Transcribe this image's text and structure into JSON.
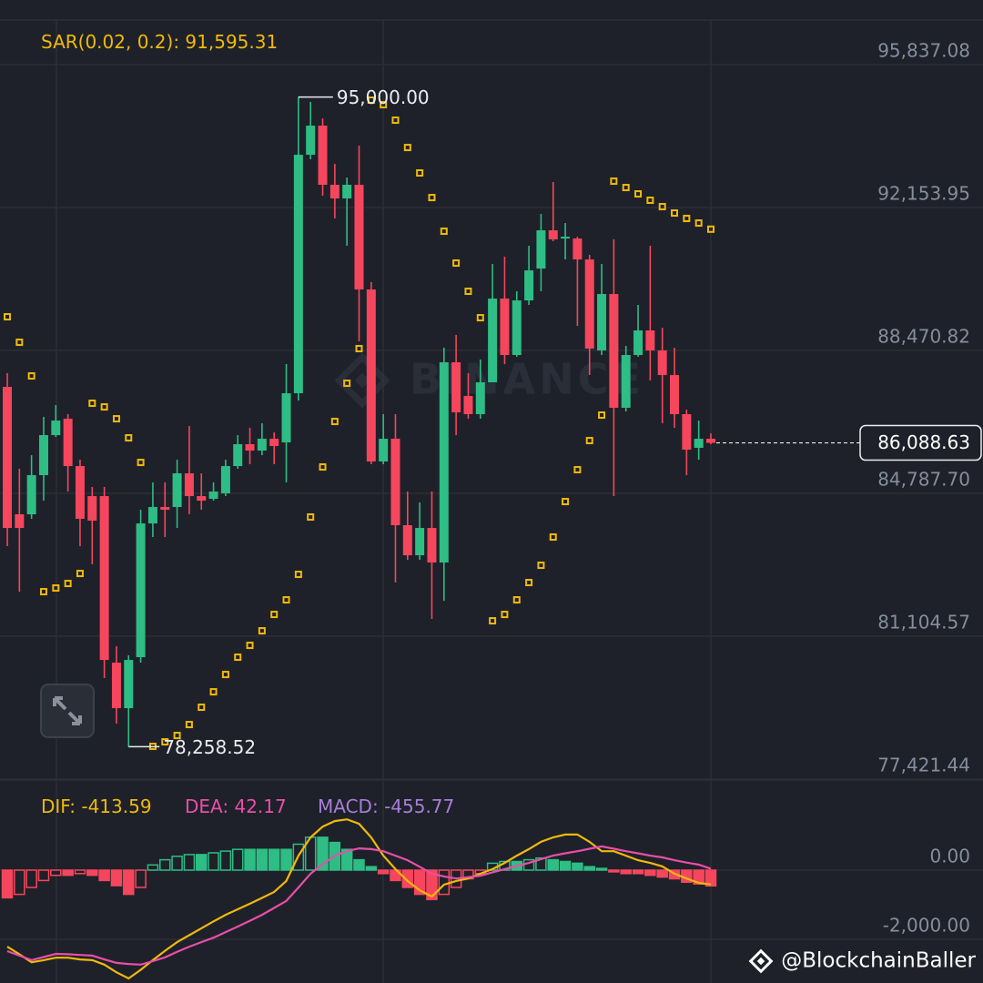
{
  "chart_data": [
    {
      "type": "candlestick",
      "up_color": "#2ebd85",
      "down_color": "#f6465d",
      "ylim": [
        77397.98,
        96986.59
      ],
      "yticks": [
        {
          "value": 95837.08,
          "label": "95,837.08"
        },
        {
          "value": 92153.95,
          "label": "92,153.95"
        },
        {
          "value": 88470.82,
          "label": "88,470.82"
        },
        {
          "value": 84787.7,
          "label": "84,787.70"
        },
        {
          "value": 81104.57,
          "label": "81,104.57"
        },
        {
          "value": 77421.44,
          "label": "77,421.44"
        }
      ],
      "grid": true,
      "open": [
        87531,
        84247,
        84247,
        85256,
        86288,
        86710,
        85490,
        84716,
        84716,
        80423,
        79250,
        80564,
        84012,
        84435,
        84435,
        85303,
        84716,
        84646,
        84787,
        85490,
        86054,
        85889,
        86194,
        86100,
        87367,
        93514,
        94265,
        92740,
        92388,
        92740,
        90042,
        85608,
        86194,
        83966,
        83191,
        83895,
        83004,
        88165,
        87297,
        86828,
        87649,
        89807,
        88353,
        89760,
        90581,
        91567,
        91355,
        91355,
        90816,
        88470,
        89924,
        86992,
        88353,
        88986,
        88470,
        87836,
        86828,
        85960,
        86194
      ],
      "high": [
        87883,
        85420,
        85772,
        86757,
        87062,
        86828,
        85655,
        84951,
        84951,
        80845,
        80611,
        84364,
        85068,
        85068,
        85655,
        86523,
        85303,
        85068,
        85655,
        86288,
        86476,
        86593,
        86358,
        88118,
        95000,
        94874,
        94452,
        93279,
        92927,
        93748,
        90229,
        86828,
        86828,
        84834,
        84552,
        84834,
        88540,
        88869,
        87883,
        88235,
        90699,
        90886,
        89995,
        91168,
        91989,
        92810,
        91754,
        91402,
        90933,
        90699,
        91332,
        88587,
        89643,
        91168,
        89056,
        88540,
        86945,
        86663,
        86335
      ],
      "low": [
        83426,
        82253,
        84130,
        84599,
        86241,
        84834,
        83426,
        82957,
        80024,
        78851,
        78258.52,
        80423,
        83661,
        83661,
        83895,
        84247,
        84364,
        84599,
        84716,
        85420,
        85537,
        85772,
        85537,
        85068,
        87180,
        93396,
        92458,
        91872,
        91168,
        88704,
        85537,
        85537,
        82488,
        83074,
        83074,
        81549,
        82018,
        86288,
        86710,
        86710,
        87649,
        88118,
        88306,
        89643,
        89995,
        91285,
        90816,
        89103,
        87836,
        88353,
        84716,
        86898,
        88306,
        87696,
        86593,
        86476,
        85256,
        85655,
        86054
      ],
      "close": [
        83895,
        83895,
        85256,
        86288,
        86663,
        85490,
        84130,
        84083,
        80493,
        79250,
        80493,
        84012,
        84435,
        84364,
        85303,
        84716,
        84599,
        84834,
        85490,
        86054,
        85889,
        86194,
        86007,
        87367,
        93514,
        94265,
        92740,
        92388,
        92740,
        90042,
        85608,
        86194,
        83966,
        83191,
        83895,
        83004,
        88165,
        86875,
        86828,
        87649,
        89807,
        88353,
        89760,
        90534,
        91567,
        91332,
        91402,
        90816,
        88517,
        89924,
        86992,
        88353,
        88986,
        88470,
        87836,
        86828,
        85913,
        86194,
        86088.63
      ],
      "high_label": "95,000.00",
      "low_label": "78,258.52",
      "last_label": "86,088.63",
      "sar": {
        "name": "SAR(0.02, 0.2)",
        "color": "#f0b90b",
        "value_label": "91,595.31",
        "values": [
          89338,
          88681,
          87813,
          82253,
          82347,
          82464,
          82722,
          87109,
          87015,
          86710,
          86218,
          85584,
          78265,
          78382,
          78546,
          78828,
          79274,
          79672,
          80118,
          80564,
          80869,
          81244,
          81666,
          82042,
          82699,
          84177,
          85467,
          86640,
          87625,
          88517,
          94921,
          94804,
          94405,
          93701,
          93045,
          92411,
          91543,
          90722,
          89995,
          89314,
          81502,
          81666,
          82042,
          82488,
          82933,
          83661,
          84576,
          85397,
          86147,
          86804,
          92833,
          92669,
          92505,
          92341,
          92177,
          92012,
          91872,
          91754,
          91595.31
        ]
      },
      "watermark": "BINANCE"
    },
    {
      "type": "macd",
      "up_color": "#2ebd85",
      "down_color": "#f6465d",
      "ylim": [
        -3263,
        2605
      ],
      "yticks": [
        {
          "value": 0,
          "label": "0.00"
        },
        {
          "value": -2000,
          "label": "-2,000.00"
        }
      ],
      "series": [
        {
          "name": "DIF",
          "color": "#f0b90b",
          "style": "line",
          "value_label": "-413.59",
          "values": [
            -2212,
            -2432,
            -2662,
            -2602,
            -2532,
            -2532,
            -2582,
            -2602,
            -2732,
            -2952,
            -3132,
            -2882,
            -2602,
            -2332,
            -2082,
            -1882,
            -1682,
            -1482,
            -1292,
            -1132,
            -972,
            -802,
            -632,
            -312,
            418,
            948,
            1258,
            1418,
            1468,
            1338,
            948,
            418,
            28,
            -312,
            -582,
            -762,
            -422,
            -312,
            -242,
            -102,
            28,
            208,
            418,
            608,
            818,
            948,
            1028,
            1028,
            818,
            548,
            548,
            418,
            288,
            208,
            108,
            -102,
            -242,
            -372,
            -413.59
          ]
        },
        {
          "name": "DEA",
          "color": "#e84fa8",
          "style": "line",
          "value_label": "42.17",
          "values": [
            -2342,
            -2472,
            -2602,
            -2512,
            -2422,
            -2432,
            -2452,
            -2472,
            -2582,
            -2682,
            -2712,
            -2732,
            -2632,
            -2522,
            -2362,
            -2212,
            -2082,
            -1952,
            -1792,
            -1632,
            -1462,
            -1292,
            -1092,
            -892,
            -502,
            -102,
            168,
            418,
            548,
            628,
            608,
            548,
            418,
            288,
            98,
            -102,
            -182,
            -242,
            -202,
            -162,
            -62,
            28,
            118,
            208,
            318,
            418,
            488,
            548,
            618,
            688,
            618,
            548,
            488,
            418,
            368,
            288,
            218,
            158,
            42.17
          ]
        },
        {
          "name": "MACD",
          "color": "#a77ed8",
          "style": "histogram",
          "value_label": "-455.77",
          "values": [
            -800,
            -700,
            -500,
            -300,
            -150,
            -150,
            -100,
            -150,
            -300,
            -450,
            -700,
            -500,
            150,
            300,
            400,
            450,
            450,
            500,
            550,
            600,
            600,
            600,
            600,
            600,
            750,
            950,
            950,
            800,
            600,
            300,
            100,
            -100,
            -300,
            -500,
            -700,
            -850,
            -700,
            -500,
            -250,
            -100,
            200,
            250,
            250,
            300,
            350,
            300,
            250,
            200,
            100,
            50,
            -50,
            -100,
            -100,
            -150,
            -200,
            -250,
            -350,
            -400,
            -455.77
          ]
        }
      ]
    }
  ],
  "credit": "@BlockchainBaller"
}
